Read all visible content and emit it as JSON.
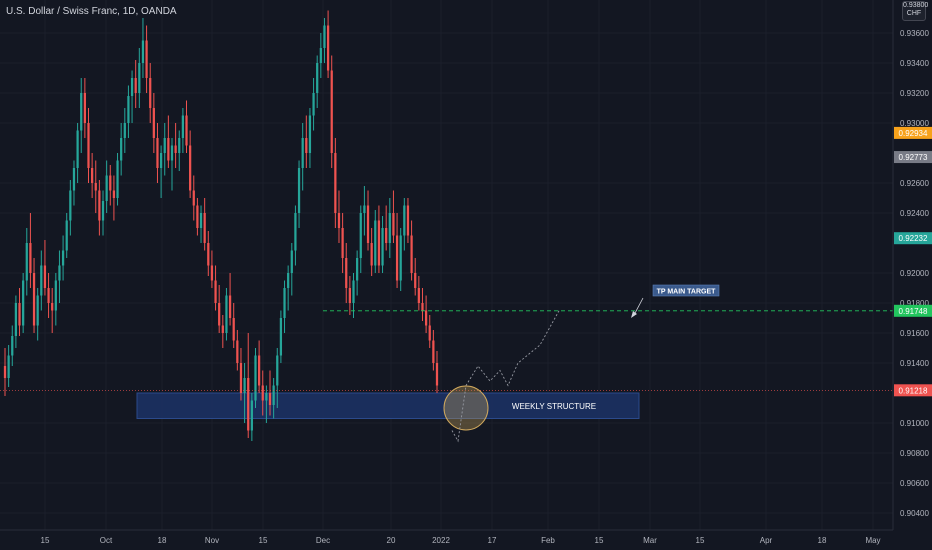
{
  "header": {
    "title": "U.S. Dollar / Swiss Franc, 1D, OANDA",
    "currency_top": "0.93800",
    "currency_code": "CHF"
  },
  "chart_data": {
    "type": "candlestick",
    "symbol": "U.S. Dollar / Swiss Franc",
    "interval": "1D",
    "source": "OANDA",
    "ylim": [
      0.903,
      0.938
    ],
    "y_ticks": [
      "0.93600",
      "0.93400",
      "0.93200",
      "0.93000",
      "0.92600",
      "0.92400",
      "0.92000",
      "0.91800",
      "0.91600",
      "0.91400",
      "0.91000",
      "0.90800",
      "0.90600",
      "0.90400"
    ],
    "x_ticks": [
      "15",
      "Oct",
      "18",
      "Nov",
      "15",
      "Dec",
      "20",
      "2022",
      "17",
      "Feb",
      "15",
      "Mar",
      "15",
      "Apr",
      "18",
      "May"
    ],
    "price_badges": [
      {
        "value": "0.92934",
        "price": 0.92934,
        "color": "#f7a21b"
      },
      {
        "value": "0.92773",
        "price": 0.92773,
        "color": "#787b86"
      },
      {
        "value": "0.92232",
        "price": 0.92232,
        "color": "#26a69a"
      },
      {
        "value": "0.91748",
        "price": 0.91748,
        "color": "#22c55e"
      },
      {
        "value": "0.91218",
        "price": 0.91218,
        "color": "#ef5350"
      }
    ],
    "annotations": {
      "target_label": "TP MAIN TARGET",
      "target_price": 0.91748,
      "structure_label": "WEEKLY STRUCTURE",
      "structure_top": 0.912,
      "structure_bottom": 0.9103
    },
    "colors": {
      "up": "#26a69a",
      "down": "#ef5350",
      "background": "#131722",
      "zone": "#1c3366"
    },
    "candles": [
      [
        0.9138,
        0.915,
        0.9118,
        0.913
      ],
      [
        0.913,
        0.9152,
        0.9124,
        0.9145
      ],
      [
        0.9145,
        0.9165,
        0.9138,
        0.9158
      ],
      [
        0.9158,
        0.9185,
        0.915,
        0.918
      ],
      [
        0.918,
        0.919,
        0.9158,
        0.9165
      ],
      [
        0.9165,
        0.92,
        0.916,
        0.9195
      ],
      [
        0.9195,
        0.923,
        0.9185,
        0.922
      ],
      [
        0.922,
        0.924,
        0.919,
        0.92
      ],
      [
        0.92,
        0.921,
        0.916,
        0.9165
      ],
      [
        0.9165,
        0.919,
        0.9155,
        0.9185
      ],
      [
        0.9185,
        0.9215,
        0.9175,
        0.9205
      ],
      [
        0.9205,
        0.9222,
        0.9185,
        0.919
      ],
      [
        0.919,
        0.92,
        0.917,
        0.918
      ],
      [
        0.918,
        0.919,
        0.916,
        0.9175
      ],
      [
        0.9175,
        0.92,
        0.9165,
        0.9195
      ],
      [
        0.9195,
        0.9215,
        0.918,
        0.9205
      ],
      [
        0.9205,
        0.9225,
        0.9195,
        0.9215
      ],
      [
        0.9215,
        0.924,
        0.921,
        0.9235
      ],
      [
        0.9235,
        0.9262,
        0.9225,
        0.9255
      ],
      [
        0.9255,
        0.9275,
        0.9245,
        0.927
      ],
      [
        0.927,
        0.93,
        0.926,
        0.9295
      ],
      [
        0.9295,
        0.933,
        0.928,
        0.932
      ],
      [
        0.932,
        0.933,
        0.929,
        0.93
      ],
      [
        0.93,
        0.931,
        0.926,
        0.927
      ],
      [
        0.927,
        0.928,
        0.925,
        0.926
      ],
      [
        0.926,
        0.9275,
        0.924,
        0.9255
      ],
      [
        0.9255,
        0.9262,
        0.9225,
        0.9235
      ],
      [
        0.9235,
        0.9255,
        0.9225,
        0.9248
      ],
      [
        0.9248,
        0.9275,
        0.924,
        0.9265
      ],
      [
        0.9265,
        0.9272,
        0.9245,
        0.9255
      ],
      [
        0.9255,
        0.9265,
        0.9235,
        0.925
      ],
      [
        0.925,
        0.928,
        0.9245,
        0.9275
      ],
      [
        0.9275,
        0.93,
        0.9265,
        0.929
      ],
      [
        0.929,
        0.931,
        0.928,
        0.93
      ],
      [
        0.93,
        0.9325,
        0.929,
        0.9318
      ],
      [
        0.9318,
        0.9335,
        0.93,
        0.933
      ],
      [
        0.933,
        0.9342,
        0.931,
        0.932
      ],
      [
        0.932,
        0.935,
        0.931,
        0.934
      ],
      [
        0.934,
        0.937,
        0.933,
        0.9355
      ],
      [
        0.9355,
        0.9365,
        0.932,
        0.933
      ],
      [
        0.933,
        0.934,
        0.93,
        0.931
      ],
      [
        0.931,
        0.932,
        0.928,
        0.929
      ],
      [
        0.929,
        0.93,
        0.926,
        0.927
      ],
      [
        0.927,
        0.9285,
        0.925,
        0.928
      ],
      [
        0.928,
        0.93,
        0.9265,
        0.929
      ],
      [
        0.929,
        0.9305,
        0.927,
        0.9275
      ],
      [
        0.9275,
        0.929,
        0.9255,
        0.9285
      ],
      [
        0.9285,
        0.93,
        0.927,
        0.928
      ],
      [
        0.928,
        0.9295,
        0.9268,
        0.929
      ],
      [
        0.929,
        0.931,
        0.928,
        0.9305
      ],
      [
        0.9305,
        0.9315,
        0.928,
        0.9285
      ],
      [
        0.9285,
        0.9295,
        0.925,
        0.9255
      ],
      [
        0.9255,
        0.9265,
        0.9235,
        0.9245
      ],
      [
        0.9245,
        0.925,
        0.9225,
        0.923
      ],
      [
        0.923,
        0.9245,
        0.922,
        0.924
      ],
      [
        0.924,
        0.925,
        0.9215,
        0.922
      ],
      [
        0.922,
        0.9228,
        0.9198,
        0.9205
      ],
      [
        0.9205,
        0.9215,
        0.919,
        0.9195
      ],
      [
        0.9195,
        0.9205,
        0.9175,
        0.918
      ],
      [
        0.918,
        0.9192,
        0.916,
        0.9165
      ],
      [
        0.9165,
        0.9172,
        0.915,
        0.916
      ],
      [
        0.916,
        0.919,
        0.9155,
        0.9185
      ],
      [
        0.9185,
        0.92,
        0.9165,
        0.917
      ],
      [
        0.917,
        0.918,
        0.915,
        0.9155
      ],
      [
        0.9155,
        0.9162,
        0.9135,
        0.914
      ],
      [
        0.914,
        0.915,
        0.9115,
        0.912
      ],
      [
        0.912,
        0.914,
        0.91,
        0.913
      ],
      [
        0.913,
        0.916,
        0.909,
        0.9095
      ],
      [
        0.9095,
        0.912,
        0.9088,
        0.9115
      ],
      [
        0.9115,
        0.915,
        0.911,
        0.9145
      ],
      [
        0.9145,
        0.9155,
        0.912,
        0.9125
      ],
      [
        0.9125,
        0.9135,
        0.9105,
        0.9115
      ],
      [
        0.9115,
        0.9125,
        0.91,
        0.912
      ],
      [
        0.912,
        0.9135,
        0.9105,
        0.9112
      ],
      [
        0.9112,
        0.913,
        0.9103,
        0.9125
      ],
      [
        0.9125,
        0.915,
        0.911,
        0.9145
      ],
      [
        0.9145,
        0.9175,
        0.914,
        0.917
      ],
      [
        0.917,
        0.9195,
        0.916,
        0.919
      ],
      [
        0.919,
        0.9205,
        0.9175,
        0.92
      ],
      [
        0.92,
        0.922,
        0.9185,
        0.9215
      ],
      [
        0.9215,
        0.9245,
        0.9205,
        0.924
      ],
      [
        0.924,
        0.9275,
        0.923,
        0.927
      ],
      [
        0.927,
        0.93,
        0.9255,
        0.929
      ],
      [
        0.929,
        0.9305,
        0.927,
        0.928
      ],
      [
        0.928,
        0.931,
        0.927,
        0.9305
      ],
      [
        0.9305,
        0.933,
        0.9295,
        0.932
      ],
      [
        0.932,
        0.9345,
        0.931,
        0.934
      ],
      [
        0.934,
        0.936,
        0.933,
        0.935
      ],
      [
        0.935,
        0.937,
        0.934,
        0.9365
      ],
      [
        0.9365,
        0.9375,
        0.933,
        0.9335
      ],
      [
        0.9335,
        0.9345,
        0.927,
        0.928
      ],
      [
        0.928,
        0.929,
        0.923,
        0.924
      ],
      [
        0.924,
        0.9255,
        0.922,
        0.923
      ],
      [
        0.923,
        0.924,
        0.92,
        0.921
      ],
      [
        0.921,
        0.922,
        0.918,
        0.919
      ],
      [
        0.919,
        0.9198,
        0.9172,
        0.918
      ],
      [
        0.918,
        0.92,
        0.917,
        0.9195
      ],
      [
        0.9195,
        0.9215,
        0.9185,
        0.921
      ],
      [
        0.921,
        0.9245,
        0.92,
        0.924
      ],
      [
        0.924,
        0.9258,
        0.9225,
        0.9245
      ],
      [
        0.9245,
        0.9255,
        0.9215,
        0.922
      ],
      [
        0.922,
        0.923,
        0.9198,
        0.9205
      ],
      [
        0.9205,
        0.9242,
        0.92,
        0.9235
      ],
      [
        0.9235,
        0.9245,
        0.92,
        0.9205
      ],
      [
        0.9205,
        0.9238,
        0.92,
        0.923
      ],
      [
        0.923,
        0.9245,
        0.9215,
        0.922
      ],
      [
        0.922,
        0.925,
        0.921,
        0.924
      ],
      [
        0.924,
        0.9255,
        0.922,
        0.9225
      ],
      [
        0.9225,
        0.924,
        0.919,
        0.9195
      ],
      [
        0.9195,
        0.923,
        0.9188,
        0.9225
      ],
      [
        0.9225,
        0.925,
        0.9215,
        0.9245
      ],
      [
        0.9245,
        0.925,
        0.922,
        0.9225
      ],
      [
        0.9225,
        0.9235,
        0.9195,
        0.92
      ],
      [
        0.92,
        0.921,
        0.9185,
        0.919
      ],
      [
        0.919,
        0.9198,
        0.9175,
        0.918
      ],
      [
        0.918,
        0.919,
        0.9168,
        0.9175
      ],
      [
        0.9175,
        0.9185,
        0.916,
        0.9165
      ],
      [
        0.9165,
        0.9172,
        0.915,
        0.9155
      ],
      [
        0.9155,
        0.9162,
        0.9135,
        0.914
      ],
      [
        0.914,
        0.9148,
        0.912,
        0.9125
      ]
    ]
  }
}
